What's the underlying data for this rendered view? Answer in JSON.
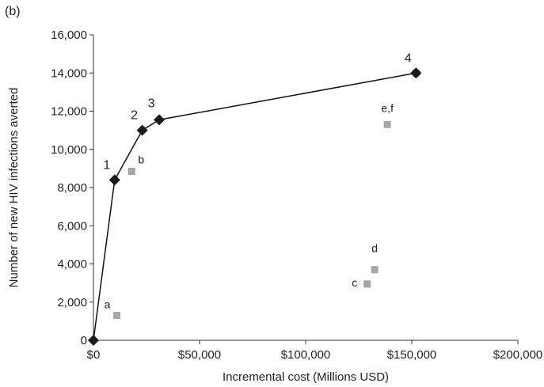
{
  "panel_label": "(b)",
  "chart_data": {
    "type": "scatter",
    "xlabel": "Incremental cost (Millions USD)",
    "ylabel": "Number of new HIV infections averted",
    "xlim": [
      0,
      200000
    ],
    "ylim": [
      0,
      16000
    ],
    "x_ticks": [
      {
        "value": 0,
        "label": "$0"
      },
      {
        "value": 50000,
        "label": "$50,000"
      },
      {
        "value": 100000,
        "label": "$100,000"
      },
      {
        "value": 150000,
        "label": "$150,000"
      },
      {
        "value": 200000,
        "label": "$200,000"
      }
    ],
    "y_ticks": [
      {
        "value": 0,
        "label": "0"
      },
      {
        "value": 2000,
        "label": "2,000"
      },
      {
        "value": 4000,
        "label": "4,000"
      },
      {
        "value": 6000,
        "label": "6,000"
      },
      {
        "value": 8000,
        "label": "8,000"
      },
      {
        "value": 10000,
        "label": "10,000"
      },
      {
        "value": 12000,
        "label": "12,000"
      },
      {
        "value": 14000,
        "label": "14,000"
      },
      {
        "value": 16000,
        "label": "16,000"
      }
    ],
    "grid": false,
    "series": [
      {
        "marker": "diamond",
        "color": "#1a1a1a",
        "connected": true,
        "points": [
          {
            "x": 0,
            "y": 0,
            "label": ""
          },
          {
            "x": 10000,
            "y": 8400,
            "label": "1"
          },
          {
            "x": 23000,
            "y": 11000,
            "label": "2"
          },
          {
            "x": 31000,
            "y": 11550,
            "label": "3"
          },
          {
            "x": 152000,
            "y": 14000,
            "label": "4"
          }
        ]
      },
      {
        "marker": "square",
        "color": "#a6a6a6",
        "connected": false,
        "points": [
          {
            "x": 11000,
            "y": 1300,
            "label": "a"
          },
          {
            "x": 18000,
            "y": 8850,
            "label": "b"
          },
          {
            "x": 129000,
            "y": 2950,
            "label": "c"
          },
          {
            "x": 132500,
            "y": 3700,
            "label": "d"
          },
          {
            "x": 138500,
            "y": 11300,
            "label": "e,f"
          },
          {
            "x": 152000,
            "y": 14000,
            "label": ""
          }
        ]
      }
    ]
  }
}
